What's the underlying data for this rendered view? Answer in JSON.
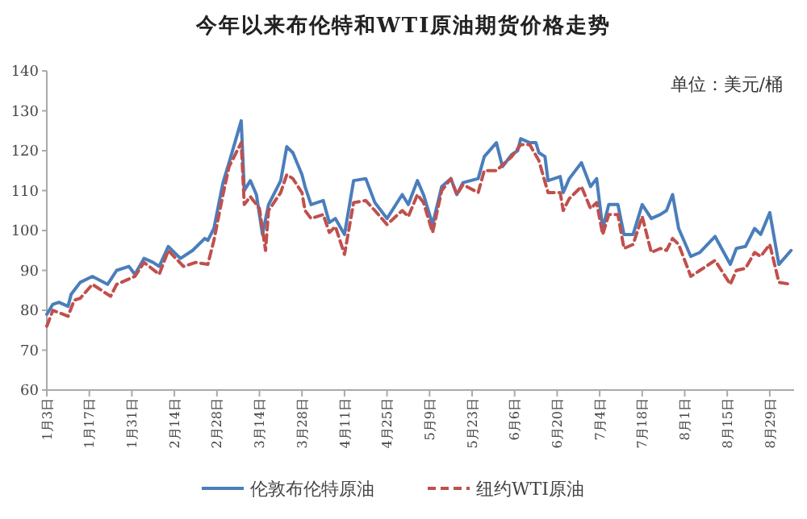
{
  "chart_data": {
    "type": "line",
    "title": "今年以来布伦特和WTI原油期货价格走势",
    "annotations": [
      "单位：美元/桶"
    ],
    "xlim": [
      "--01-03",
      "--09-06"
    ],
    "xticks": [
      {
        "value": "--01-03",
        "label": "1月3日"
      },
      {
        "value": "--01-17",
        "label": "1月17日"
      },
      {
        "value": "--01-31",
        "label": "1月31日"
      },
      {
        "value": "--02-14",
        "label": "2月14日"
      },
      {
        "value": "--02-28",
        "label": "2月28日"
      },
      {
        "value": "--03-14",
        "label": "3月14日"
      },
      {
        "value": "--03-28",
        "label": "3月28日"
      },
      {
        "value": "--04-11",
        "label": "4月11日"
      },
      {
        "value": "--04-25",
        "label": "4月25日"
      },
      {
        "value": "--05-09",
        "label": "5月9日"
      },
      {
        "value": "--05-23",
        "label": "5月23日"
      },
      {
        "value": "--06-06",
        "label": "6月6日"
      },
      {
        "value": "--06-20",
        "label": "6月20日"
      },
      {
        "value": "--07-04",
        "label": "7月4日"
      },
      {
        "value": "--07-18",
        "label": "7月18日"
      },
      {
        "value": "--08-01",
        "label": "8月1日"
      },
      {
        "value": "--08-15",
        "label": "8月15日"
      },
      {
        "value": "--08-29",
        "label": "8月29日"
      }
    ],
    "ylim": [
      60,
      140
    ],
    "yticks": [
      60,
      70,
      80,
      90,
      100,
      110,
      120,
      130,
      140
    ],
    "grid": false,
    "legend": "bottom",
    "marker": "none",
    "series": [
      {
        "name": "伦敦布伦特原油",
        "color": "#4a7ebb",
        "line_style": "solid",
        "x": [
          "--01-03",
          "--01-05",
          "--01-07",
          "--01-10",
          "--01-11",
          "--01-14",
          "--01-18",
          "--01-23",
          "--01-26",
          "--01-30",
          "--02-01",
          "--02-04",
          "--02-07",
          "--02-09",
          "--02-12",
          "--02-16",
          "--02-20",
          "--02-24",
          "--02-25",
          "--02-27",
          "--03-02",
          "--03-04",
          "--03-08",
          "--03-09",
          "--03-11",
          "--03-13",
          "--03-15",
          "--03-17",
          "--03-21",
          "--03-23",
          "--03-25",
          "--03-28",
          "--03-29",
          "--03-31",
          "--04-04",
          "--04-06",
          "--04-08",
          "--04-11",
          "--04-14",
          "--04-18",
          "--04-21",
          "--04-25",
          "--04-30",
          "--05-02",
          "--05-05",
          "--05-07",
          "--05-10",
          "--05-13",
          "--05-16",
          "--05-18",
          "--05-20",
          "--05-25",
          "--05-27",
          "--05-31",
          "--06-02",
          "--06-05",
          "--06-07",
          "--06-08",
          "--06-11",
          "--06-13",
          "--06-14",
          "--06-16",
          "--06-17",
          "--06-21",
          "--06-22",
          "--06-24",
          "--06-28",
          "--07-01",
          "--07-03",
          "--07-05",
          "--07-07",
          "--07-10",
          "--07-12",
          "--07-15",
          "--07-18",
          "--07-21",
          "--07-24",
          "--07-26",
          "--07-28",
          "--07-30",
          "--08-03",
          "--08-06",
          "--08-11",
          "--08-16",
          "--08-18",
          "--08-21",
          "--08-24",
          "--08-26",
          "--08-29",
          "--09-01",
          "--09-05"
        ],
        "values": [
          79,
          81.5,
          82,
          81,
          84,
          87,
          88.5,
          86.5,
          90,
          91,
          89,
          93,
          92,
          91,
          96,
          93,
          95,
          98,
          97.5,
          100.5,
          112,
          117,
          127.5,
          110,
          112.5,
          109,
          99,
          106.5,
          112.5,
          121,
          119.5,
          114,
          111,
          106.5,
          107.5,
          102,
          103,
          99,
          112.5,
          113,
          107,
          103,
          109,
          106.5,
          112.5,
          109,
          101.5,
          111,
          113,
          109,
          112,
          113,
          118.5,
          122,
          116,
          119,
          120,
          123,
          122,
          122,
          119.5,
          118.5,
          112.5,
          113.5,
          109.5,
          113,
          117,
          111,
          113,
          100.5,
          106.5,
          106.5,
          99,
          99,
          106.5,
          103,
          104,
          105,
          109,
          100.5,
          93.5,
          94.5,
          98.5,
          91.5,
          95.5,
          96,
          100.5,
          99,
          104.5,
          91.5,
          95
        ]
      },
      {
        "name": "纽约WTI原油",
        "color": "#c0504d",
        "line_style": "dashed",
        "x": [
          "--01-03",
          "--01-05",
          "--01-10",
          "--01-12",
          "--01-14",
          "--01-18",
          "--01-24",
          "--01-26",
          "--02-01",
          "--02-04",
          "--02-09",
          "--02-12",
          "--02-17",
          "--02-21",
          "--02-25",
          "--02-27",
          "--03-02",
          "--03-04",
          "--03-08",
          "--03-09",
          "--03-11",
          "--03-14",
          "--03-16",
          "--03-17",
          "--03-21",
          "--03-23",
          "--03-25",
          "--03-28",
          "--03-29",
          "--03-31",
          "--04-04",
          "--04-06",
          "--04-08",
          "--04-11",
          "--04-14",
          "--04-18",
          "--04-21",
          "--04-25",
          "--04-30",
          "--05-02",
          "--05-05",
          "--05-07",
          "--05-10",
          "--05-13",
          "--05-16",
          "--05-18",
          "--05-20",
          "--05-25",
          "--05-27",
          "--05-31",
          "--06-05",
          "--06-08",
          "--06-11",
          "--06-14",
          "--06-17",
          "--06-21",
          "--06-22",
          "--06-24",
          "--06-28",
          "--07-01",
          "--07-03",
          "--07-05",
          "--07-07",
          "--07-10",
          "--07-12",
          "--07-15",
          "--07-18",
          "--07-21",
          "--07-24",
          "--07-26",
          "--07-28",
          "--07-30",
          "--08-03",
          "--08-06",
          "--08-11",
          "--08-16",
          "--08-18",
          "--08-21",
          "--08-24",
          "--08-26",
          "--08-29",
          "--09-01",
          "--09-05"
        ],
        "values": [
          76,
          80,
          78.5,
          82.5,
          83,
          86.5,
          83.5,
          86.5,
          88.5,
          92,
          89,
          95,
          91,
          92,
          91.5,
          97.5,
          109,
          116,
          122,
          106.5,
          108.5,
          105.5,
          95,
          105,
          109.5,
          114,
          113,
          109.5,
          105,
          103,
          104,
          99.5,
          101,
          94,
          107,
          107.5,
          105,
          101.5,
          105,
          103.5,
          109,
          107,
          99.5,
          110,
          113,
          109,
          111.5,
          109.5,
          115,
          115,
          118.5,
          121.5,
          121.5,
          117.5,
          109.5,
          109.5,
          105,
          108,
          111,
          105.5,
          107,
          99,
          104,
          104,
          95.5,
          96.5,
          103.5,
          94.5,
          95.5,
          95,
          98,
          96.5,
          88.5,
          90,
          92.5,
          86.5,
          90,
          90.5,
          94.5,
          93.5,
          96.5,
          87,
          86.5
        ]
      }
    ]
  }
}
